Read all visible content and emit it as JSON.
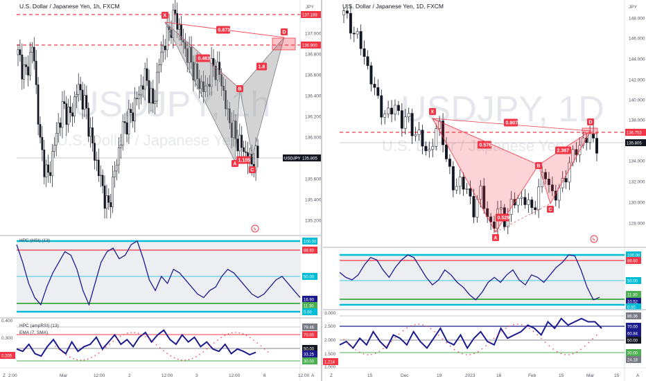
{
  "charts": [
    {
      "symbol_title": "U.S. Dollar / Japanese Yen, 1h, FXCM",
      "watermark_symbol": "USDJPY, 1h",
      "watermark_name": "U.S. Dollar / Japanese Yen",
      "currency": "JPY",
      "price_ticks": [
        "137.000",
        "136.800",
        "136.600",
        "136.400",
        "136.200",
        "136.000",
        "135.800",
        "135.600",
        "135.400",
        "135.200"
      ],
      "price_tags": [
        {
          "text": "137.188",
          "color": "#f23645"
        },
        {
          "text": "136.900",
          "color": "#f23645"
        },
        {
          "text": "135.805",
          "color": "#131722"
        }
      ],
      "last_label": "USDJPY",
      "pattern_points": [
        "X",
        "A",
        "B",
        "C",
        "D"
      ],
      "ratios": [
        "0.873",
        "0.463",
        "1.8",
        "1.105"
      ],
      "time_ticks": [
        "2:00",
        "Mar",
        "12:00",
        "2",
        "12:00",
        "3",
        "12:00",
        "6",
        "12:00"
      ],
      "corner_left": "Z",
      "corner_right": "A",
      "ind1_title": "HPC (HSI) (13)",
      "ind1_tags": [
        {
          "text": "100.00",
          "color": "#00bcd4"
        },
        {
          "text": "88.60",
          "color": "#f23645"
        },
        {
          "text": "60.00",
          "color": "#ffffff"
        },
        {
          "text": "50.00",
          "color": "#00bcd4"
        },
        {
          "text": "40.00",
          "color": "#ffffff"
        },
        {
          "text": "16.90",
          "color": "#1a1a8c"
        },
        {
          "text": "11.30",
          "color": "#4caf50"
        },
        {
          "text": "0.00",
          "color": "#00bcd4"
        }
      ],
      "ind1_plain_ticks": [
        "60.00",
        "40.00"
      ],
      "ind2_title": "HPC (ampRSI) (13)",
      "ind2_sub": "EMA (7, SMA)",
      "ind2_left_ticks": [
        "0.400",
        "0.300"
      ],
      "ind2_left_tag": "0.205",
      "ind2_tags": [
        {
          "text": "79.46",
          "color": "#787b86"
        },
        {
          "text": "70.00",
          "color": "#f23645"
        },
        {
          "text": "50.00",
          "color": "#131722"
        },
        {
          "text": "30.00",
          "color": "#4caf50"
        },
        {
          "text": "33.25",
          "color": "#1a1a8c"
        }
      ],
      "chart_data": {
        "type": "line",
        "title": "U.S. Dollar / Japanese Yen, 1h, FXCM",
        "ylim": [
          135.05,
          137.3
        ],
        "series": [
          {
            "name": "USDJPY",
            "values": [
              136.8,
              136.6,
              136.9,
              135.9,
              135.6,
              136.0,
              136.3,
              136.2,
              136.5,
              136.3,
              135.9,
              135.6,
              135.3,
              135.7,
              136.1,
              136.2,
              136.4,
              136.6,
              136.3,
              136.8,
              137.0,
              137.19,
              136.9,
              136.75,
              136.55,
              136.45,
              136.7,
              136.6,
              136.2,
              136.0,
              135.9,
              135.75,
              135.82
            ]
          }
        ],
        "pattern": {
          "X": 137.19,
          "A": 135.73,
          "B": 136.43,
          "C": 135.68,
          "D": 136.88
        },
        "levels": [
          137.188,
          136.9,
          135.805
        ]
      }
    },
    {
      "symbol_title": "U.S. Dollar / Japanese Yen, 1D, FXCM",
      "watermark_symbol": "USDJPY, 1D",
      "watermark_name": "U.S. Dollar / Japanese Yen",
      "currency": "JPY",
      "price_ticks": [
        "148.000",
        "146.000",
        "144.000",
        "142.000",
        "140.000",
        "138.000",
        "134.000",
        "132.000",
        "130.000",
        "128.000"
      ],
      "price_tags": [
        {
          "text": "136.753",
          "color": "#f23645"
        },
        {
          "text": "135.805",
          "color": "#131722"
        }
      ],
      "pattern_points": [
        "X",
        "A",
        "B",
        "C",
        "D"
      ],
      "ratios": [
        "0.907",
        "0.576",
        "2.367",
        "0.529"
      ],
      "time_ticks": [
        "15",
        "Dec",
        "19",
        "2023",
        "16",
        "Feb",
        "15",
        "Mar",
        "15"
      ],
      "corner_left": "Z",
      "corner_right": "A",
      "ind1_tags": [
        {
          "text": "100.00",
          "color": "#00bcd4"
        },
        {
          "text": "88.60",
          "color": "#f23645"
        },
        {
          "text": "50.00",
          "color": "#00bcd4"
        },
        {
          "text": "11.30",
          "color": "#4caf50"
        },
        {
          "text": "10.52",
          "color": "#1a1a8c"
        },
        {
          "text": "0.00",
          "color": "#00bcd4"
        }
      ],
      "ind2_left_ticks": [
        "3.000",
        "2.500",
        "2.000",
        "1.500",
        "1.000"
      ],
      "ind2_left_tag": "1.214",
      "ind2_tags": [
        {
          "text": "86.36",
          "color": "#787b86"
        },
        {
          "text": "70.00",
          "color": "#1a1a8c"
        },
        {
          "text": "60.84",
          "color": "#1a1a8c"
        },
        {
          "text": "50.00",
          "color": "#131722"
        },
        {
          "text": "30.00",
          "color": "#4caf50"
        },
        {
          "text": "24.18",
          "color": "#787b86"
        }
      ],
      "chart_data": {
        "type": "line",
        "title": "U.S. Dollar / Japanese Yen, 1D, FXCM",
        "ylim": [
          126.5,
          149
        ],
        "series": [
          {
            "name": "USDJPY",
            "values": [
              148.3,
              147.5,
              146.0,
              144.8,
              142.5,
              140.2,
              139.0,
              138.3,
              139.8,
              137.6,
              138.2,
              136.8,
              135.9,
              134.8,
              136.4,
              137.8,
              133.5,
              131.2,
              132.5,
              130.8,
              129.5,
              131.0,
              128.9,
              127.6,
              129.3,
              128.4,
              129.8,
              130.6,
              130.2,
              129.1,
              131.4,
              132.8,
              131.2,
              130.4,
              132.6,
              134.1,
              135.2,
              136.4,
              136.1,
              135.8
            ]
          }
        ],
        "pattern": {
          "X": 137.8,
          "A": 127.6,
          "B": 133.2,
          "C": 129.1,
          "D": 136.9
        },
        "levels": [
          136.753,
          135.805
        ]
      }
    }
  ],
  "colors": {
    "up": "#ffffff",
    "down": "#131722",
    "pattern_fill": "#9e9e9e",
    "pattern_red": "#f23645",
    "indicator_line": "#1a1a8c"
  }
}
